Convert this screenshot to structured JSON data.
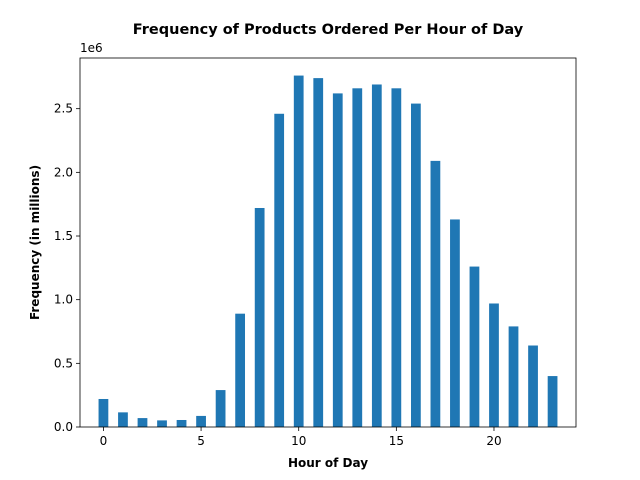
{
  "chart_data": {
    "type": "bar",
    "title": "Frequency of Products Ordered Per Hour of Day",
    "xlabel": "Hour of Day",
    "ylabel": "Frequency (in millions)",
    "y_offset_label": "1e6",
    "x": [
      0,
      1,
      2,
      3,
      4,
      5,
      6,
      7,
      8,
      9,
      10,
      11,
      12,
      13,
      14,
      15,
      16,
      17,
      18,
      19,
      20,
      21,
      22,
      23
    ],
    "values": [
      220000,
      115000,
      70000,
      52000,
      55000,
      87000,
      290000,
      890000,
      1720000,
      2460000,
      2760000,
      2740000,
      2620000,
      2660000,
      2690000,
      2660000,
      2540000,
      2090000,
      1630000,
      1260000,
      970000,
      790000,
      640000,
      400000
    ],
    "xlim": [
      -1.2,
      24.2
    ],
    "ylim": [
      0,
      2898000
    ],
    "x_ticks": [
      0,
      5,
      10,
      15,
      20
    ],
    "x_tick_labels": [
      "0",
      "5",
      "10",
      "15",
      "20"
    ],
    "y_ticks": [
      0,
      0.5,
      1.0,
      1.5,
      2.0,
      2.5
    ],
    "y_tick_labels": [
      "0.0",
      "0.5",
      "1.0",
      "1.5",
      "2.0",
      "2.5"
    ],
    "bar_color": "#1f77b4",
    "grid": false,
    "legend": "none"
  }
}
